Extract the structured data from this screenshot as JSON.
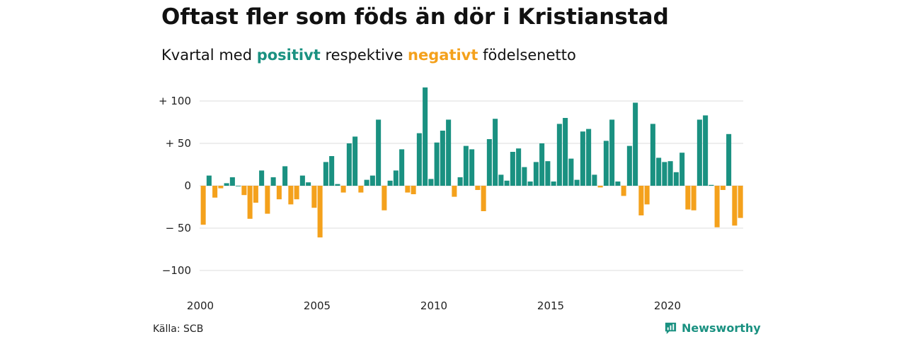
{
  "title": "Oftast fler som föds än dör i Kristianstad",
  "subtitle": {
    "prefix": "Kvartal med ",
    "positive_word": "positivt",
    "middle": " respektive ",
    "negative_word": "negativt",
    "suffix": " födelsenetto"
  },
  "source": "Källa: SCB",
  "brand": "Newsworthy",
  "colors": {
    "positive": "#1a9181",
    "negative": "#f4a11c",
    "grid": "#dddddd"
  },
  "chart_data": {
    "type": "bar",
    "x_start": "2000 Q1",
    "x_end": "2023 Q2",
    "ylim": [
      -110,
      120
    ],
    "yticks": [
      {
        "value": 100,
        "label": "+ 100"
      },
      {
        "value": 50,
        "label": "+  50"
      },
      {
        "value": 0,
        "label": "0"
      },
      {
        "value": -50,
        "label": "− 50"
      },
      {
        "value": -100,
        "label": "−100"
      }
    ],
    "xticks": [
      {
        "year": 2000,
        "label": "2000"
      },
      {
        "year": 2005,
        "label": "2005"
      },
      {
        "year": 2010,
        "label": "2010"
      },
      {
        "year": 2015,
        "label": "2015"
      },
      {
        "year": 2020,
        "label": "2020"
      }
    ],
    "values": [
      -46,
      12,
      -14,
      -3,
      3,
      10,
      0,
      -11,
      -39,
      -20,
      18,
      -33,
      10,
      -16,
      23,
      -22,
      -16,
      12,
      4,
      -26,
      -61,
      28,
      35,
      2,
      -8,
      50,
      58,
      -8,
      7,
      12,
      78,
      -29,
      6,
      18,
      43,
      -8,
      -10,
      62,
      116,
      8,
      51,
      65,
      78,
      -13,
      10,
      47,
      43,
      -5,
      -30,
      55,
      79,
      13,
      6,
      40,
      44,
      22,
      5,
      28,
      50,
      29,
      5,
      73,
      80,
      32,
      7,
      64,
      67,
      13,
      -2,
      53,
      78,
      5,
      -12,
      47,
      98,
      -35,
      -22,
      73,
      33,
      28,
      29,
      16,
      39,
      -28,
      -29,
      78,
      83,
      1,
      -49,
      -5,
      61,
      -47,
      -38
    ]
  }
}
